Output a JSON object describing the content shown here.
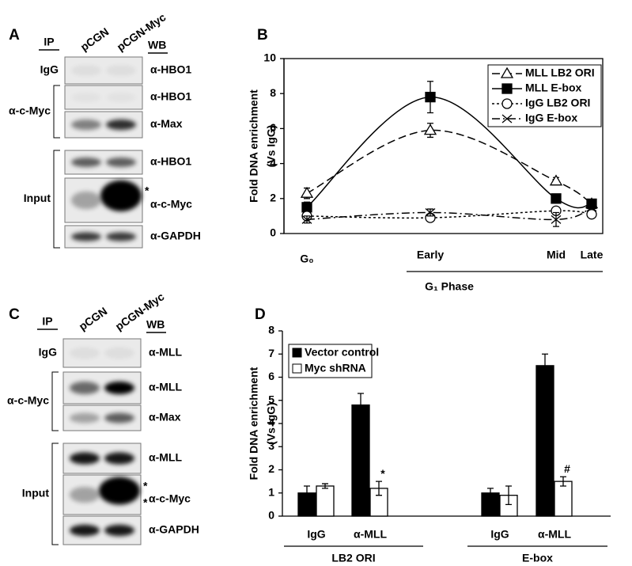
{
  "panels": [
    {
      "letter": "A",
      "ip": "IP",
      "lanes": [
        "pCGN",
        "pCGN-Myc"
      ],
      "wb": "WB",
      "groups": [
        {
          "label": "IgG",
          "rows": [
            {
              "wb": "α-HBO1"
            }
          ]
        },
        {
          "label": "α-c-Myc",
          "rows": [
            {
              "wb": "α-HBO1"
            },
            {
              "wb": "α-Max"
            }
          ]
        },
        {
          "label": "Input",
          "rows": [
            {
              "wb": "α-HBO1"
            },
            {
              "wb": "α-c-Myc",
              "asterisks": [
                "*"
              ]
            },
            {
              "wb": "α-GAPDH"
            }
          ]
        }
      ]
    },
    {
      "letter": "C",
      "ip": "IP",
      "lanes": [
        "pCGN",
        "pCGN-Myc"
      ],
      "wb": "WB",
      "groups": [
        {
          "label": "IgG",
          "rows": [
            {
              "wb": "α-MLL"
            }
          ]
        },
        {
          "label": "α-c-Myc",
          "rows": [
            {
              "wb": "α-MLL"
            },
            {
              "wb": "α-Max"
            }
          ]
        },
        {
          "label": "Input",
          "rows": [
            {
              "wb": "α-MLL"
            },
            {
              "wb": "α-c-Myc",
              "asterisks": [
                "*",
                "*"
              ]
            },
            {
              "wb": "α-GAPDH"
            }
          ]
        }
      ]
    }
  ],
  "chart_data": [
    {
      "type": "line",
      "panel": "B",
      "ylabel": [
        "Fold DNA enrichment",
        "(Vs IgG)"
      ],
      "categories": [
        "G₀",
        "Early",
        "Mid",
        "Late"
      ],
      "group_label": "G₁ Phase",
      "ylim": [
        0,
        10
      ],
      "yticks": [
        0,
        2,
        4,
        6,
        8,
        10
      ],
      "legend": "top-right",
      "series": [
        {
          "name": "MLL LB2 ORI",
          "color": "#000000",
          "values": [
            2.3,
            5.9,
            3.0,
            1.7
          ],
          "errors": [
            0.3,
            0.4,
            0.2,
            0.1
          ]
        },
        {
          "name": "MLL E-box",
          "color": "#000000",
          "values": [
            1.5,
            7.8,
            2.0,
            1.7
          ],
          "errors": [
            0.3,
            0.9,
            0.2,
            0.1
          ]
        },
        {
          "name": "IgG LB2 ORI",
          "color": "#000000",
          "values": [
            1.0,
            0.9,
            1.3,
            1.1
          ],
          "errors": [
            0.2,
            0.2,
            0.2,
            0.1
          ]
        },
        {
          "name": "IgG E-box",
          "color": "#000000",
          "values": [
            0.8,
            1.2,
            0.8,
            1.5
          ],
          "errors": [
            0.2,
            0.2,
            0.4,
            0.1
          ]
        }
      ]
    },
    {
      "type": "bar",
      "panel": "D",
      "ylabel": [
        "Fold DNA enrichment",
        "(Vs IgG)"
      ],
      "categories": [
        "IgG",
        "α-MLL",
        "IgG",
        "α-MLL"
      ],
      "groups": [
        "LB2 ORI",
        "E-box"
      ],
      "ylim": [
        0,
        8
      ],
      "yticks": [
        0,
        1,
        2,
        3,
        4,
        5,
        6,
        7,
        8
      ],
      "legend": "top-left",
      "series": [
        {
          "name": "Vector control",
          "color": "#000000",
          "values": [
            1.0,
            4.8,
            1.0,
            6.5
          ],
          "errors": [
            0.3,
            0.5,
            0.2,
            0.5
          ]
        },
        {
          "name": "Myc shRNA",
          "color": "#ffffff",
          "values": [
            1.3,
            1.2,
            0.9,
            1.5
          ],
          "errors": [
            0.1,
            0.3,
            0.4,
            0.2
          ],
          "annotations": [
            null,
            "*",
            null,
            "#"
          ]
        }
      ]
    }
  ]
}
